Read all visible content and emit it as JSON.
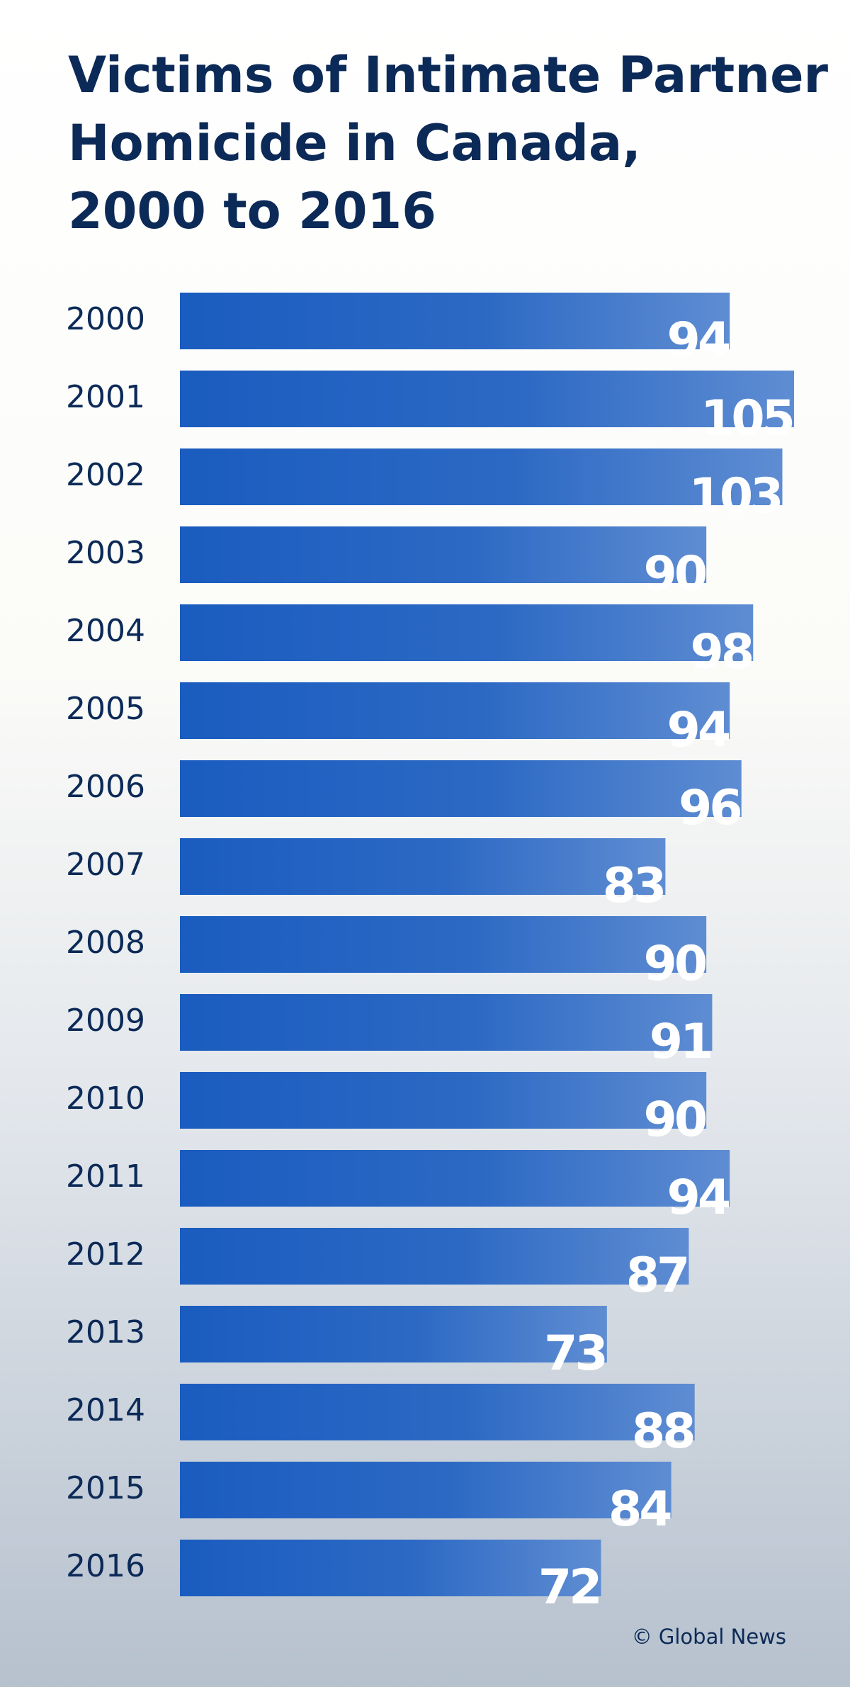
{
  "chart_data": {
    "type": "bar",
    "orientation": "horizontal",
    "title": "Victims of Intimate Partner Homicide in Canada, 2000 to 2016",
    "categories": [
      "2000",
      "2001",
      "2002",
      "2003",
      "2004",
      "2005",
      "2006",
      "2007",
      "2008",
      "2009",
      "2010",
      "2011",
      "2012",
      "2013",
      "2014",
      "2015",
      "2016"
    ],
    "values": [
      94,
      105,
      103,
      90,
      98,
      94,
      96,
      83,
      90,
      91,
      90,
      94,
      87,
      73,
      88,
      84,
      72
    ],
    "color": "#1a5cbf",
    "source": "© Global News"
  }
}
